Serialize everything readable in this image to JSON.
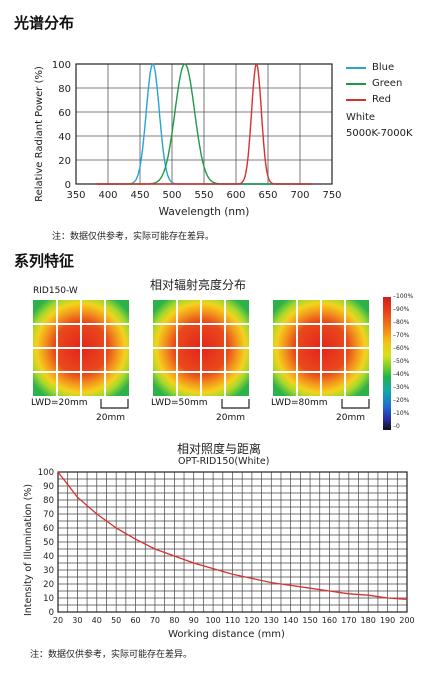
{
  "section1": {
    "title": "光谱分布",
    "note": "注：数据仅供参考，实际可能存在差异。"
  },
  "section2": {
    "title": "系列特征",
    "heatmap_title": "相对辐射亮度分布",
    "model": "RID150-W",
    "maps": [
      {
        "lwd": "LWD=20mm",
        "scale": "20mm"
      },
      {
        "lwd": "LWD=50mm",
        "scale": "20mm"
      },
      {
        "lwd": "LWD=80mm",
        "scale": "20mm"
      }
    ],
    "colorbar_ticks": [
      "100%",
      "90%",
      "80%",
      "70%",
      "60%",
      "50%",
      "40%",
      "30%",
      "20%",
      "10%",
      "0"
    ],
    "note": "注：数据仅供参考，实际可能存在差异。"
  },
  "chart_data": [
    {
      "type": "line",
      "title": "",
      "xlabel": "Wavelength (nm)",
      "ylabel": "Relative Radiant Power (%)",
      "xlim": [
        350,
        750
      ],
      "ylim": [
        0,
        100
      ],
      "xticks": [
        350,
        400,
        450,
        500,
        550,
        600,
        650,
        700,
        750
      ],
      "yticks": [
        0,
        20,
        40,
        60,
        80,
        100
      ],
      "grid": true,
      "legend_position": "right",
      "legend_note": [
        "White",
        "5000K-7000K"
      ],
      "series": [
        {
          "name": "Blue",
          "color": "#29a3d6",
          "peak": 470,
          "fwhm": 24
        },
        {
          "name": "Green",
          "color": "#1f9a4b",
          "peak": 520,
          "fwhm": 36
        },
        {
          "name": "Red",
          "color": "#d8302f",
          "peak": 632,
          "fwhm": 18
        }
      ]
    },
    {
      "type": "line",
      "title": "相对照度与距离",
      "subtitle": "OPT-RID150(White)",
      "xlabel": "Working distance (mm)",
      "ylabel": "Intensity of Illumination (%)",
      "xlim": [
        20,
        200
      ],
      "ylim": [
        0,
        100
      ],
      "xticks": [
        20,
        30,
        40,
        50,
        60,
        70,
        80,
        90,
        100,
        110,
        120,
        130,
        140,
        150,
        160,
        170,
        180,
        190,
        200
      ],
      "yticks": [
        0,
        10,
        20,
        30,
        40,
        50,
        60,
        70,
        80,
        90,
        100
      ],
      "grid": true,
      "series": [
        {
          "name": "",
          "color": "#d8302f",
          "x": [
            20,
            30,
            40,
            50,
            60,
            70,
            80,
            90,
            100,
            110,
            120,
            130,
            140,
            150,
            160,
            170,
            180,
            190,
            200
          ],
          "y": [
            100,
            82,
            70,
            60,
            52,
            45,
            40,
            35,
            31,
            27,
            24,
            21,
            19,
            17,
            15,
            13,
            12,
            10,
            9
          ]
        }
      ]
    }
  ]
}
